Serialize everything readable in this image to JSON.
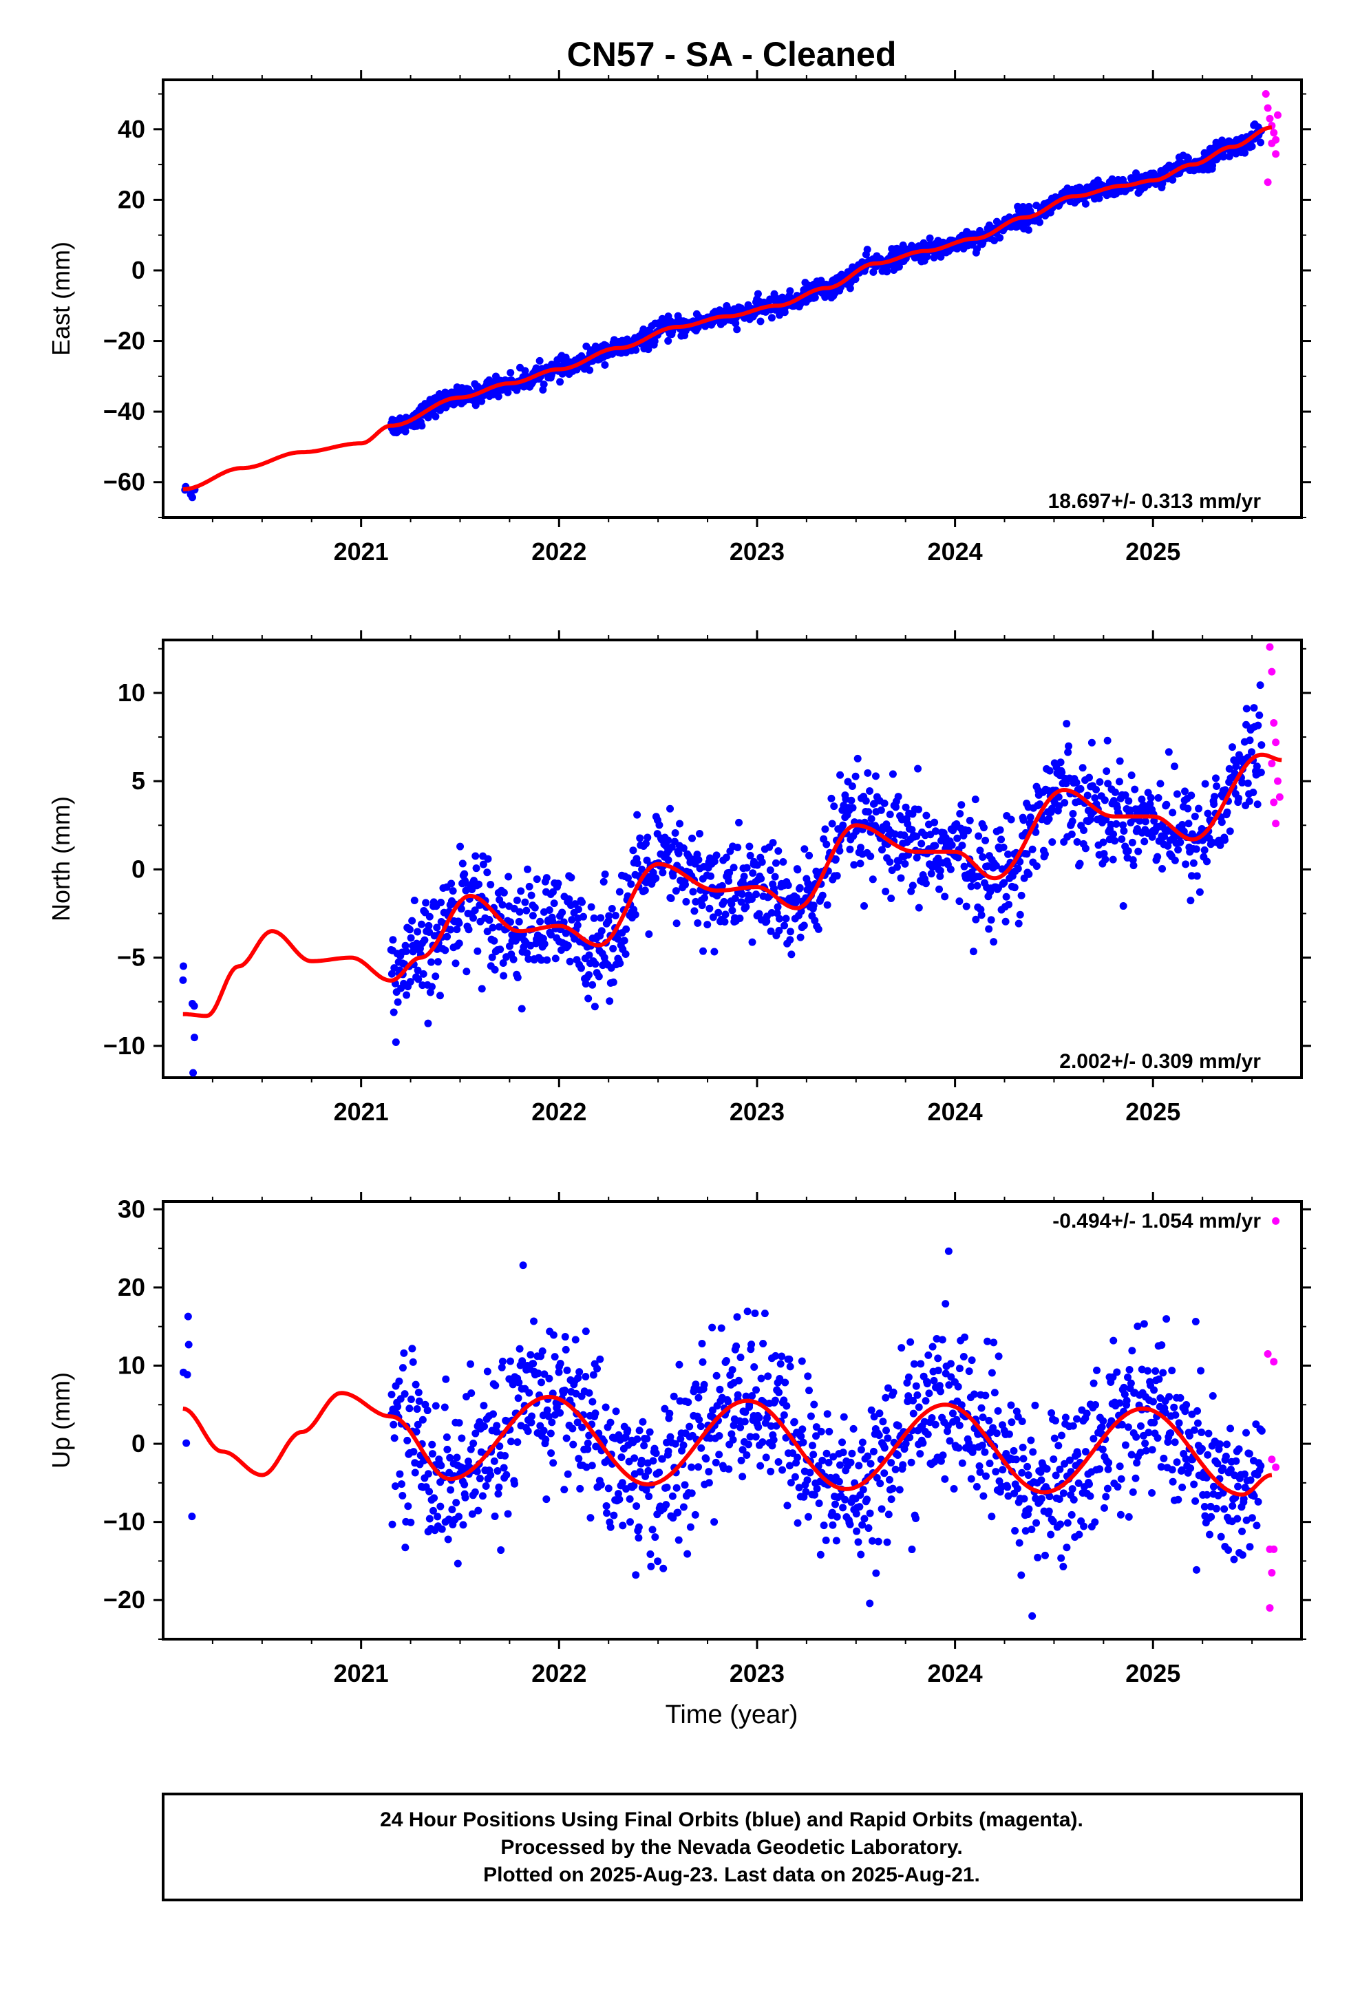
{
  "colors": {
    "final": "#0000ff",
    "rapid": "#ff00ff",
    "model": "#ff0000",
    "frame": "#000000"
  },
  "title": "CN57  - SA - Cleaned",
  "xlabel": "Time (year)",
  "footer": {
    "line1": "24 Hour Positions Using Final Orbits (blue) and Rapid Orbits (magenta).",
    "line2": "Processed by the Nevada Geodetic Laboratory.",
    "line3": "Plotted on 2025-Aug-23. Last data on 2025-Aug-21."
  },
  "chart_data": [
    {
      "type": "scatter",
      "component": "east",
      "ylabel": "East (mm)",
      "rate_label": "18.697+/- 0.313 mm/yr",
      "rate_position": "bottom-right",
      "xlim": [
        2020.0,
        2025.75
      ],
      "ylim": [
        -70,
        54
      ],
      "yticks": [
        -60,
        -40,
        -20,
        0,
        20,
        40
      ],
      "xticks": [
        2021,
        2022,
        2023,
        2024,
        2025
      ],
      "rate_mm_per_yr": 18.697,
      "data_start": 2021.15,
      "data_end": 2025.55,
      "early_start": 2020.1,
      "early_end": 2020.16,
      "scatter_mm": 1.4,
      "model_anchors": [
        [
          2020.1,
          -62
        ],
        [
          2020.4,
          -56
        ],
        [
          2020.7,
          -51.5
        ],
        [
          2021.0,
          -49
        ],
        [
          2021.15,
          -44
        ],
        [
          2021.5,
          -36
        ],
        [
          2021.75,
          -32
        ],
        [
          2022.0,
          -28
        ],
        [
          2022.3,
          -22
        ],
        [
          2022.6,
          -16
        ],
        [
          2022.85,
          -13
        ],
        [
          2023.1,
          -10
        ],
        [
          2023.35,
          -5
        ],
        [
          2023.6,
          2
        ],
        [
          2023.85,
          5.5
        ],
        [
          2024.1,
          9
        ],
        [
          2024.35,
          15
        ],
        [
          2024.6,
          21
        ],
        [
          2024.85,
          24
        ],
        [
          2025.0,
          25.5
        ],
        [
          2025.2,
          30
        ],
        [
          2025.4,
          35
        ],
        [
          2025.6,
          40.5
        ]
      ],
      "rapid_points": [
        [
          2025.57,
          50
        ],
        [
          2025.58,
          46
        ],
        [
          2025.59,
          43
        ],
        [
          2025.6,
          41
        ],
        [
          2025.61,
          39
        ],
        [
          2025.62,
          37
        ],
        [
          2025.63,
          44
        ],
        [
          2025.6,
          36
        ],
        [
          2025.58,
          25
        ],
        [
          2025.62,
          33
        ]
      ]
    },
    {
      "type": "scatter",
      "component": "north",
      "ylabel": "North (mm)",
      "rate_label": "2.002+/- 0.309 mm/yr",
      "rate_position": "bottom-right",
      "xlim": [
        2020.0,
        2025.75
      ],
      "ylim": [
        -11.8,
        13
      ],
      "yticks": [
        -10,
        -5,
        0,
        5,
        10
      ],
      "xticks": [
        2021,
        2022,
        2023,
        2024,
        2025
      ],
      "rate_mm_per_yr": 2.002,
      "data_start": 2021.15,
      "data_end": 2025.55,
      "early_start": 2020.1,
      "early_end": 2020.16,
      "scatter_mm": 1.5,
      "model_anchors": [
        [
          2020.1,
          -8.2
        ],
        [
          2020.22,
          -8.3
        ],
        [
          2020.38,
          -5.5
        ],
        [
          2020.55,
          -3.5
        ],
        [
          2020.75,
          -5.2
        ],
        [
          2020.95,
          -5
        ],
        [
          2021.15,
          -6.3
        ],
        [
          2021.3,
          -5
        ],
        [
          2021.55,
          -1.5
        ],
        [
          2021.8,
          -3.5
        ],
        [
          2022.0,
          -3.2
        ],
        [
          2022.2,
          -4.3
        ],
        [
          2022.5,
          0.3
        ],
        [
          2022.8,
          -1.2
        ],
        [
          2023.0,
          -1
        ],
        [
          2023.2,
          -2.2
        ],
        [
          2023.5,
          2.5
        ],
        [
          2023.8,
          1
        ],
        [
          2024.0,
          1
        ],
        [
          2024.2,
          -0.5
        ],
        [
          2024.55,
          4.5
        ],
        [
          2024.8,
          3
        ],
        [
          2025.0,
          3
        ],
        [
          2025.2,
          1.7
        ],
        [
          2025.55,
          6.5
        ],
        [
          2025.65,
          6.2
        ]
      ],
      "rapid_points": [
        [
          2025.59,
          12.6
        ],
        [
          2025.6,
          11.2
        ],
        [
          2025.61,
          8.3
        ],
        [
          2025.62,
          7.2
        ],
        [
          2025.6,
          6.0
        ],
        [
          2025.63,
          5.0
        ],
        [
          2025.61,
          3.8
        ],
        [
          2025.62,
          2.6
        ],
        [
          2025.64,
          4.1
        ]
      ]
    },
    {
      "type": "scatter",
      "component": "up",
      "ylabel": "Up (mm)",
      "rate_label": "-0.494+/- 1.054 mm/yr",
      "rate_position": "top-right",
      "xlim": [
        2020.0,
        2025.75
      ],
      "ylim": [
        -25,
        31
      ],
      "yticks": [
        -20,
        -10,
        0,
        10,
        20,
        30
      ],
      "xticks": [
        2021,
        2022,
        2023,
        2024,
        2025
      ],
      "rate_mm_per_yr": -0.494,
      "data_start": 2021.15,
      "data_end": 2025.55,
      "early_start": 2020.1,
      "early_end": 2020.16,
      "scatter_mm": 5.2,
      "model_anchors": [
        [
          2020.1,
          4.5
        ],
        [
          2020.3,
          -1
        ],
        [
          2020.5,
          -4
        ],
        [
          2020.7,
          1.5
        ],
        [
          2020.9,
          6.5
        ],
        [
          2021.15,
          3.5
        ],
        [
          2021.45,
          -4.5
        ],
        [
          2021.95,
          6
        ],
        [
          2022.45,
          -5.2
        ],
        [
          2022.95,
          5.5
        ],
        [
          2023.45,
          -5.8
        ],
        [
          2023.95,
          5
        ],
        [
          2024.45,
          -6.2
        ],
        [
          2024.95,
          4.5
        ],
        [
          2025.45,
          -6.5
        ],
        [
          2025.6,
          -4
        ]
      ],
      "rapid_points": [
        [
          2025.62,
          28.5
        ],
        [
          2025.58,
          11.5
        ],
        [
          2025.61,
          10.5
        ],
        [
          2025.6,
          -2
        ],
        [
          2025.62,
          -3
        ],
        [
          2025.59,
          -13.5
        ],
        [
          2025.61,
          -13.5
        ],
        [
          2025.6,
          -16.5
        ],
        [
          2025.59,
          -21
        ]
      ]
    }
  ]
}
